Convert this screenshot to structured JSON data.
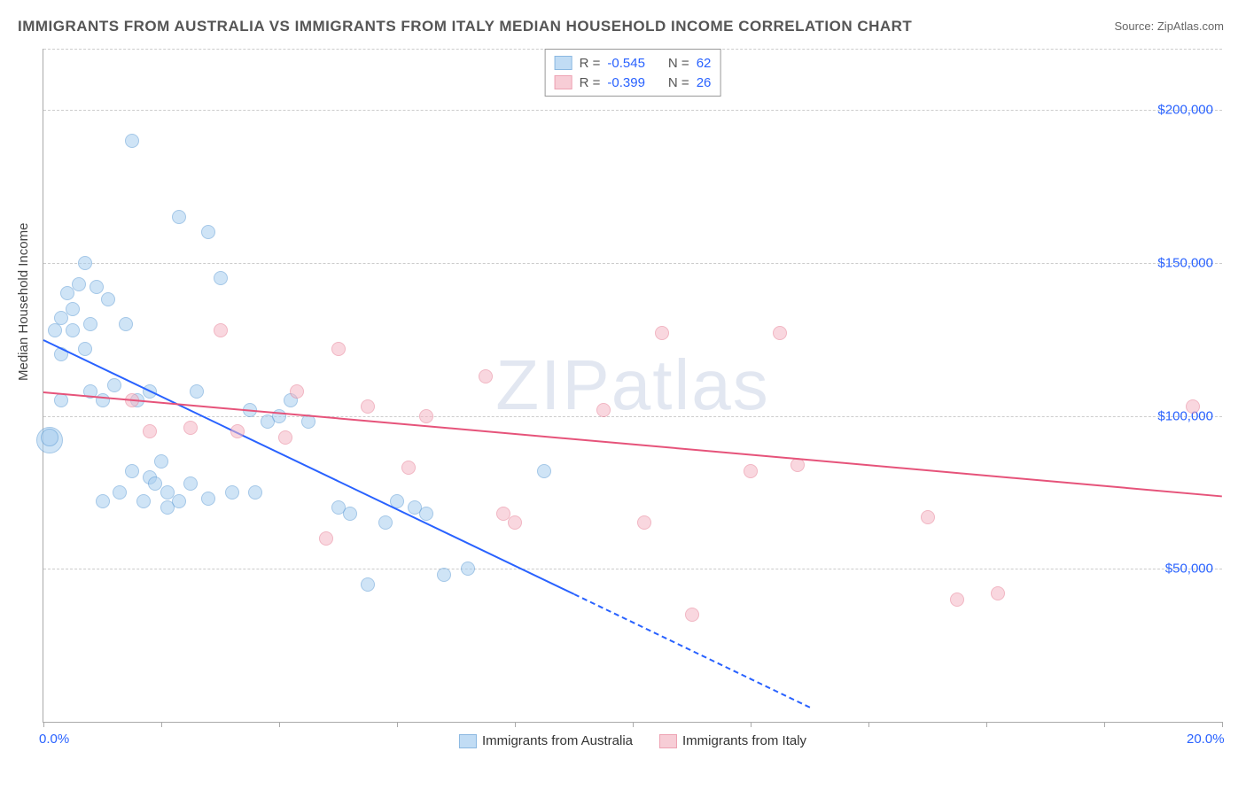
{
  "title": "IMMIGRANTS FROM AUSTRALIA VS IMMIGRANTS FROM ITALY MEDIAN HOUSEHOLD INCOME CORRELATION CHART",
  "source": "Source: ZipAtlas.com",
  "ylabel": "Median Household Income",
  "watermark_bold": "ZIP",
  "watermark_light": "atlas",
  "chart": {
    "type": "scatter",
    "xlim": [
      0,
      20
    ],
    "ylim": [
      0,
      220000
    ],
    "x_ticks": [
      0,
      2,
      4,
      6,
      8,
      10,
      12,
      14,
      16,
      18,
      20
    ],
    "x_tick_labels": {
      "0": "0.0%",
      "20": "20.0%"
    },
    "y_ticks": [
      50000,
      100000,
      150000,
      200000
    ],
    "y_tick_labels": [
      "$50,000",
      "$100,000",
      "$150,000",
      "$200,000"
    ],
    "grid_color": "#cccccc",
    "background_color": "#ffffff",
    "series": [
      {
        "name": "Immigrants from Australia",
        "fill_color": "#a8cef0",
        "fill_opacity": 0.55,
        "stroke_color": "#5b9bd5",
        "R": "-0.545",
        "N": "62",
        "trend": {
          "x1": 0,
          "y1": 125000,
          "x2": 9,
          "y2": 42000,
          "dash_x2": 13,
          "dash_y2": 5000,
          "color": "#2962ff",
          "width": 2
        },
        "points": [
          {
            "x": 0.1,
            "y": 92000,
            "r": 14
          },
          {
            "x": 0.1,
            "y": 93000,
            "r": 9
          },
          {
            "x": 0.2,
            "y": 128000,
            "r": 7
          },
          {
            "x": 0.3,
            "y": 120000,
            "r": 7
          },
          {
            "x": 0.3,
            "y": 105000,
            "r": 7
          },
          {
            "x": 0.3,
            "y": 132000,
            "r": 7
          },
          {
            "x": 0.4,
            "y": 140000,
            "r": 7
          },
          {
            "x": 0.5,
            "y": 135000,
            "r": 7
          },
          {
            "x": 0.5,
            "y": 128000,
            "r": 7
          },
          {
            "x": 0.6,
            "y": 143000,
            "r": 7
          },
          {
            "x": 0.7,
            "y": 150000,
            "r": 7
          },
          {
            "x": 0.7,
            "y": 122000,
            "r": 7
          },
          {
            "x": 0.8,
            "y": 130000,
            "r": 7
          },
          {
            "x": 0.8,
            "y": 108000,
            "r": 7
          },
          {
            "x": 0.9,
            "y": 142000,
            "r": 7
          },
          {
            "x": 1.0,
            "y": 105000,
            "r": 7
          },
          {
            "x": 1.0,
            "y": 72000,
            "r": 7
          },
          {
            "x": 1.1,
            "y": 138000,
            "r": 7
          },
          {
            "x": 1.2,
            "y": 110000,
            "r": 7
          },
          {
            "x": 1.3,
            "y": 75000,
            "r": 7
          },
          {
            "x": 1.4,
            "y": 130000,
            "r": 7
          },
          {
            "x": 1.5,
            "y": 190000,
            "r": 7
          },
          {
            "x": 1.5,
            "y": 82000,
            "r": 7
          },
          {
            "x": 1.6,
            "y": 105000,
            "r": 7
          },
          {
            "x": 1.7,
            "y": 72000,
            "r": 7
          },
          {
            "x": 1.8,
            "y": 108000,
            "r": 7
          },
          {
            "x": 1.8,
            "y": 80000,
            "r": 7
          },
          {
            "x": 1.9,
            "y": 78000,
            "r": 7
          },
          {
            "x": 2.0,
            "y": 85000,
            "r": 7
          },
          {
            "x": 2.1,
            "y": 75000,
            "r": 7
          },
          {
            "x": 2.1,
            "y": 70000,
            "r": 7
          },
          {
            "x": 2.3,
            "y": 165000,
            "r": 7
          },
          {
            "x": 2.3,
            "y": 72000,
            "r": 7
          },
          {
            "x": 2.5,
            "y": 78000,
            "r": 7
          },
          {
            "x": 2.6,
            "y": 108000,
            "r": 7
          },
          {
            "x": 2.8,
            "y": 160000,
            "r": 7
          },
          {
            "x": 2.8,
            "y": 73000,
            "r": 7
          },
          {
            "x": 3.0,
            "y": 145000,
            "r": 7
          },
          {
            "x": 3.2,
            "y": 75000,
            "r": 7
          },
          {
            "x": 3.5,
            "y": 102000,
            "r": 7
          },
          {
            "x": 3.6,
            "y": 75000,
            "r": 7
          },
          {
            "x": 3.8,
            "y": 98000,
            "r": 7
          },
          {
            "x": 4.0,
            "y": 100000,
            "r": 7
          },
          {
            "x": 4.2,
            "y": 105000,
            "r": 7
          },
          {
            "x": 4.5,
            "y": 98000,
            "r": 7
          },
          {
            "x": 5.0,
            "y": 70000,
            "r": 7
          },
          {
            "x": 5.2,
            "y": 68000,
            "r": 7
          },
          {
            "x": 5.5,
            "y": 45000,
            "r": 7
          },
          {
            "x": 5.8,
            "y": 65000,
            "r": 7
          },
          {
            "x": 6.0,
            "y": 72000,
            "r": 7
          },
          {
            "x": 6.3,
            "y": 70000,
            "r": 7
          },
          {
            "x": 6.5,
            "y": 68000,
            "r": 7
          },
          {
            "x": 6.8,
            "y": 48000,
            "r": 7
          },
          {
            "x": 7.2,
            "y": 50000,
            "r": 7
          },
          {
            "x": 8.5,
            "y": 82000,
            "r": 7
          }
        ]
      },
      {
        "name": "Immigrants from Italy",
        "fill_color": "#f5b8c5",
        "fill_opacity": 0.55,
        "stroke_color": "#e67b93",
        "R": "-0.399",
        "N": "26",
        "trend": {
          "x1": 0,
          "y1": 108000,
          "x2": 20,
          "y2": 74000,
          "color": "#e6537a",
          "width": 2
        },
        "points": [
          {
            "x": 1.5,
            "y": 105000,
            "r": 7
          },
          {
            "x": 1.8,
            "y": 95000,
            "r": 7
          },
          {
            "x": 2.5,
            "y": 96000,
            "r": 7
          },
          {
            "x": 3.0,
            "y": 128000,
            "r": 7
          },
          {
            "x": 3.3,
            "y": 95000,
            "r": 7
          },
          {
            "x": 4.1,
            "y": 93000,
            "r": 7
          },
          {
            "x": 4.3,
            "y": 108000,
            "r": 7
          },
          {
            "x": 4.8,
            "y": 60000,
            "r": 7
          },
          {
            "x": 5.0,
            "y": 122000,
            "r": 7
          },
          {
            "x": 5.5,
            "y": 103000,
            "r": 7
          },
          {
            "x": 6.2,
            "y": 83000,
            "r": 7
          },
          {
            "x": 6.5,
            "y": 100000,
            "r": 7
          },
          {
            "x": 7.5,
            "y": 113000,
            "r": 7
          },
          {
            "x": 7.8,
            "y": 68000,
            "r": 7
          },
          {
            "x": 8.0,
            "y": 65000,
            "r": 7
          },
          {
            "x": 9.5,
            "y": 102000,
            "r": 7
          },
          {
            "x": 10.2,
            "y": 65000,
            "r": 7
          },
          {
            "x": 10.5,
            "y": 127000,
            "r": 7
          },
          {
            "x": 11.0,
            "y": 35000,
            "r": 7
          },
          {
            "x": 12.0,
            "y": 82000,
            "r": 7
          },
          {
            "x": 12.5,
            "y": 127000,
            "r": 7
          },
          {
            "x": 12.8,
            "y": 84000,
            "r": 7
          },
          {
            "x": 15.0,
            "y": 67000,
            "r": 7
          },
          {
            "x": 15.5,
            "y": 40000,
            "r": 7
          },
          {
            "x": 16.2,
            "y": 42000,
            "r": 7
          },
          {
            "x": 19.5,
            "y": 103000,
            "r": 7
          }
        ]
      }
    ]
  },
  "legend_top_label_R": "R =",
  "legend_top_label_N": "N ="
}
